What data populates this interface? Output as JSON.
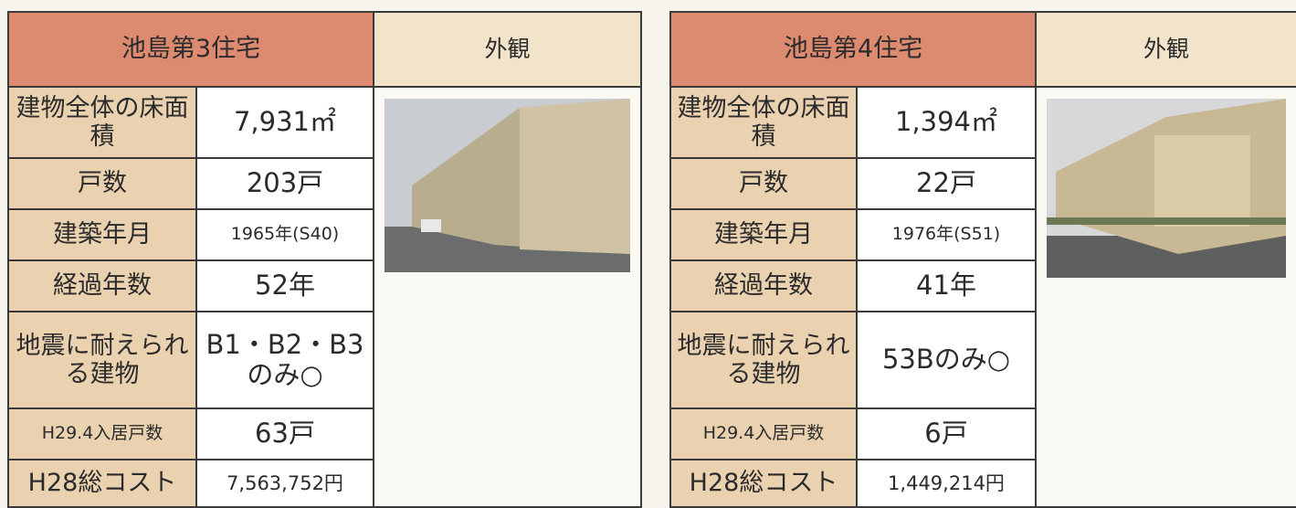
{
  "tables": [
    {
      "title": "池島第3住宅",
      "photo_header": "外観",
      "rows": [
        [
          "建物全体の床面積",
          "7,931㎡"
        ],
        [
          "戸数",
          "203戸"
        ],
        [
          "建築年月",
          "1965年(S40)"
        ],
        [
          "経過年数",
          "52年"
        ],
        [
          "地震に耐えられる建物",
          "B1・B2・B3のみ○"
        ],
        [
          "H29.4入居戸数",
          "63戸"
        ],
        [
          "H28総コスト",
          "7,563,752円"
        ]
      ]
    },
    {
      "title": "池島第4住宅",
      "photo_header": "外観",
      "rows": [
        [
          "建物全体の床面積",
          "1,394㎡"
        ],
        [
          "戸数",
          "22戸"
        ],
        [
          "建築年月",
          "1976年(S51)"
        ],
        [
          "経過年数",
          "41年"
        ],
        [
          "地震に耐えられる建物",
          "53Bのみ○"
        ],
        [
          "H29.4入居戸数",
          "6戸"
        ],
        [
          "H28総コスト",
          "1,449,214円"
        ]
      ]
    }
  ]
}
